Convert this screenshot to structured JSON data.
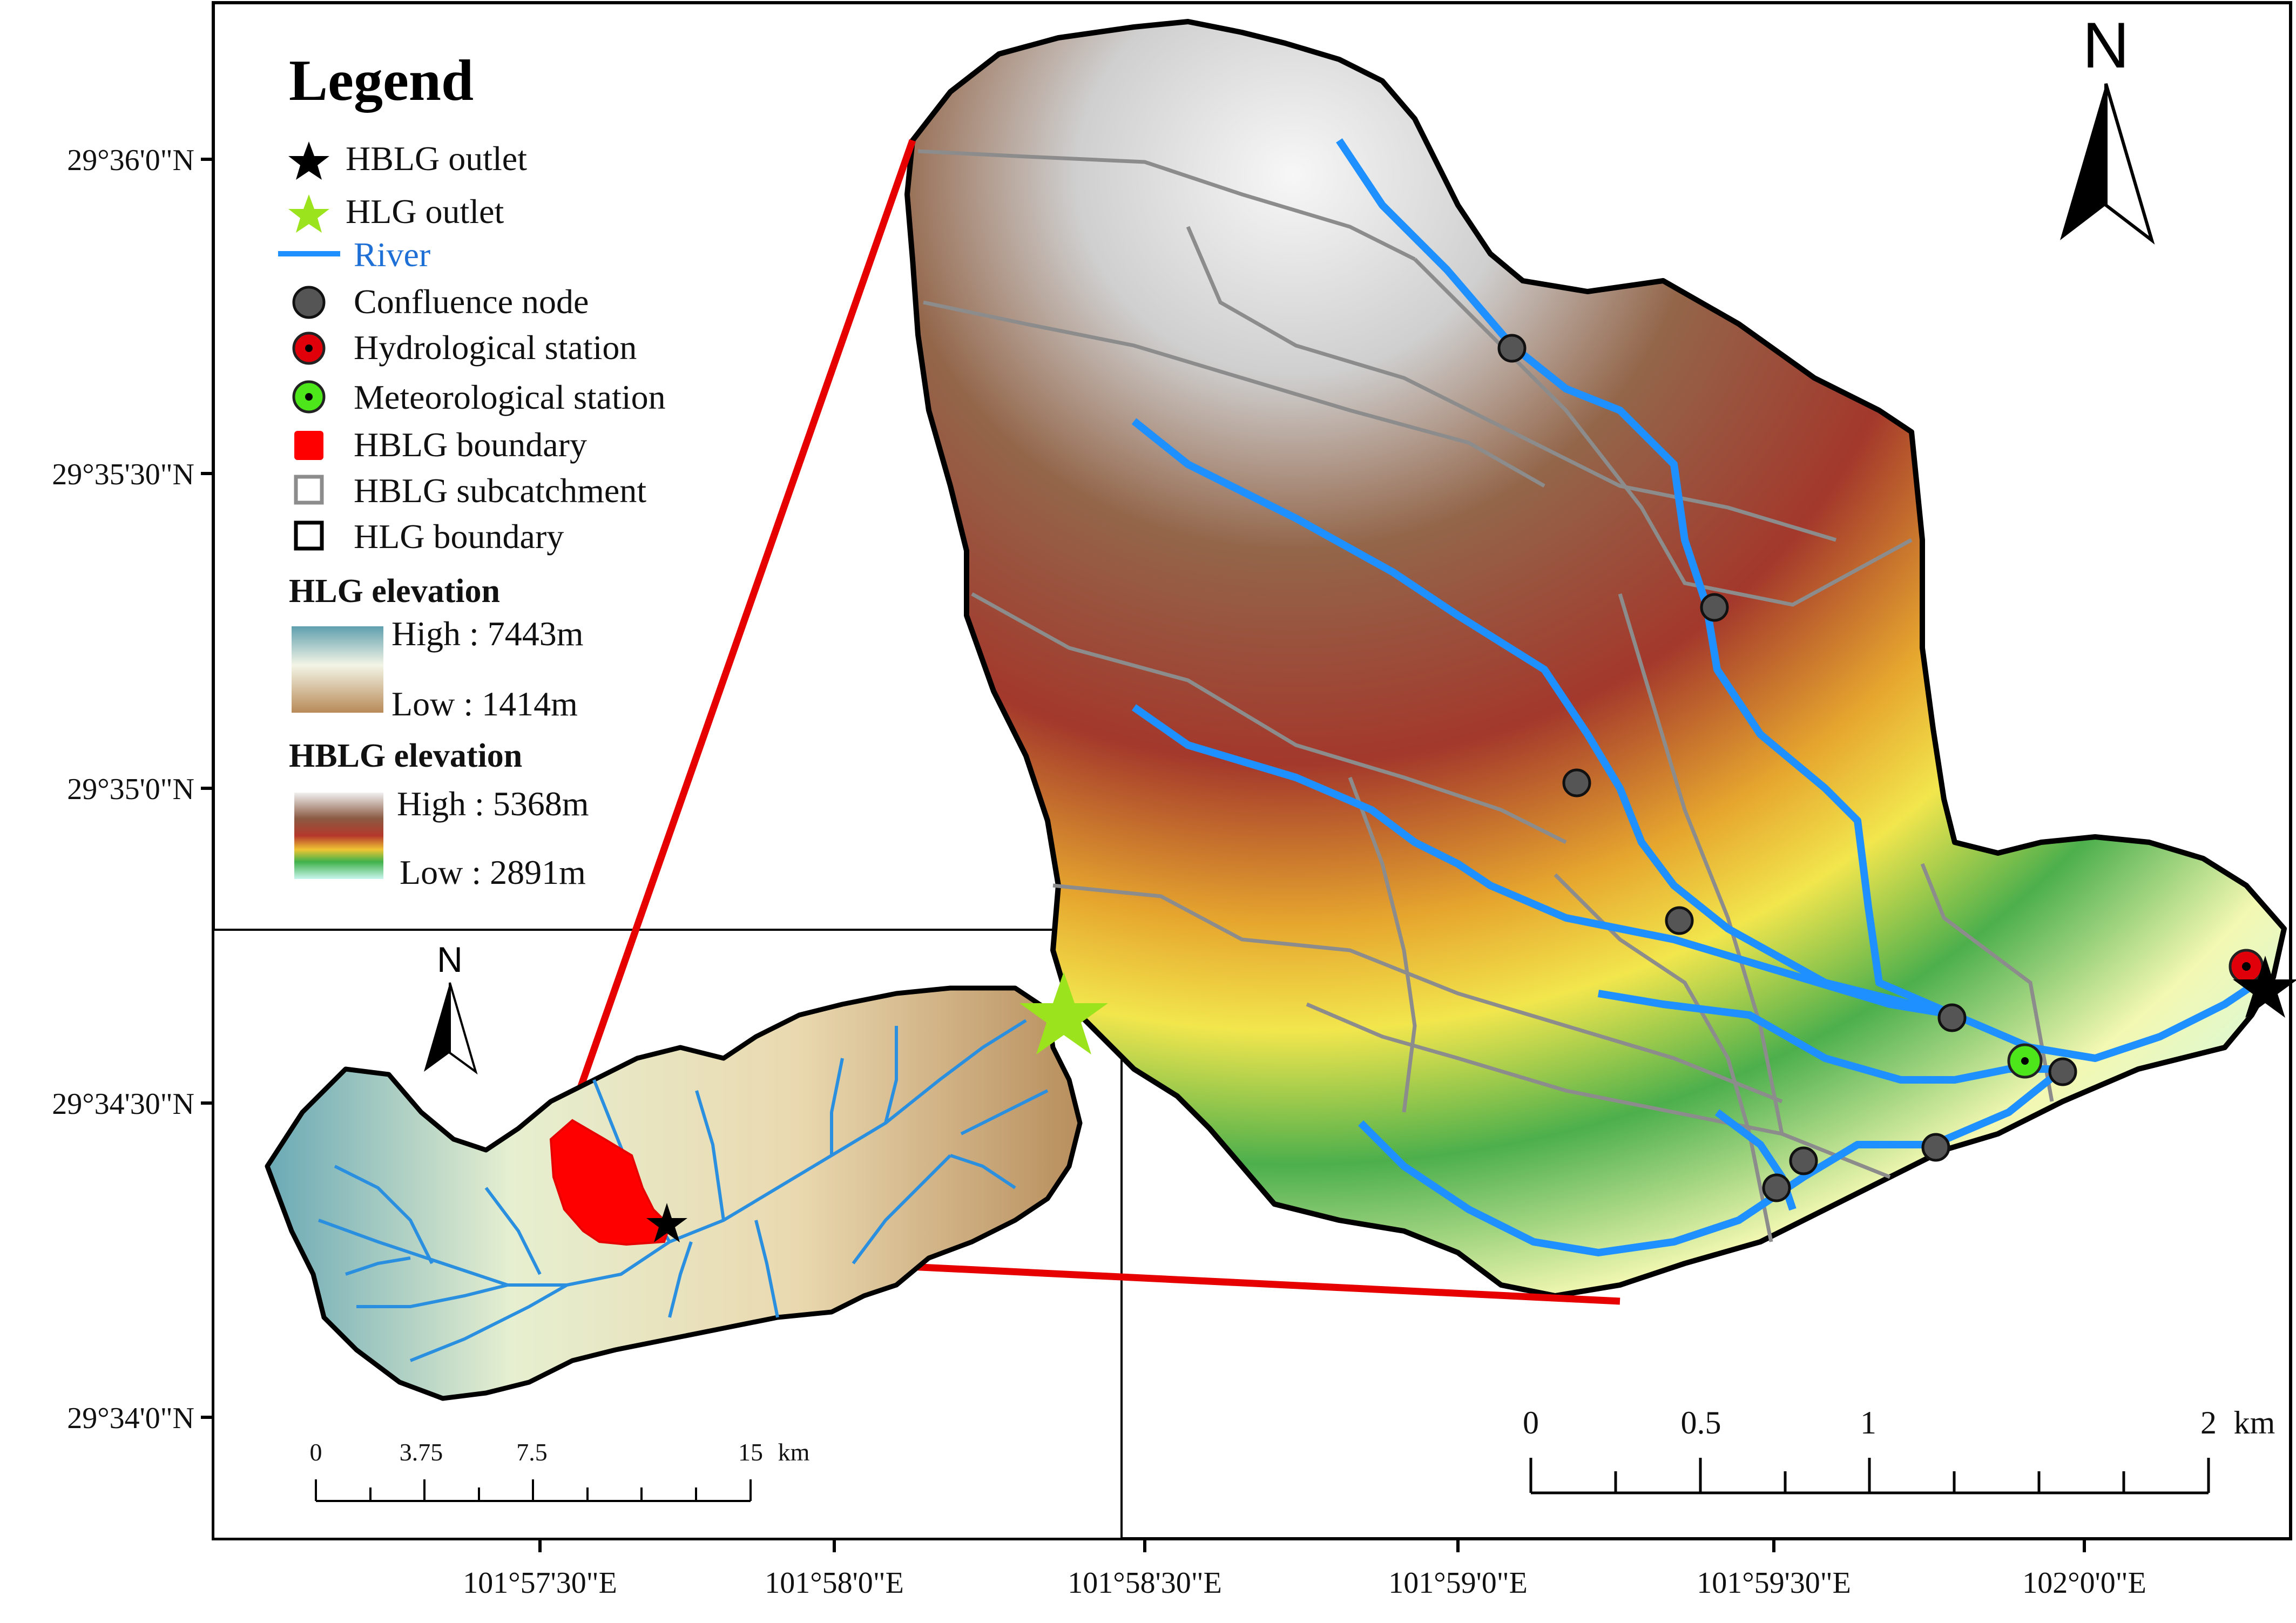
{
  "legend": {
    "title": "Legend",
    "items": [
      {
        "label": "HBLG outlet",
        "icon": "black-star-icon",
        "color": "#000000"
      },
      {
        "label": "HLG outlet",
        "icon": "green-star-icon",
        "color": "#9be31c"
      },
      {
        "label": "River",
        "icon": "river-line-icon",
        "color": "#1e90ff"
      },
      {
        "label": "Confluence node",
        "icon": "gray-circle-icon",
        "color": "#555555"
      },
      {
        "label": "Hydrological station",
        "icon": "red-dot-circle-icon",
        "color": "#e0000a"
      },
      {
        "label": "Meteorological station",
        "icon": "green-dot-circle-icon",
        "color": "#4de61a"
      },
      {
        "label": "HBLG boundary",
        "icon": "red-square-icon",
        "color": "#ff0000"
      },
      {
        "label": "HBLG subcatchment",
        "icon": "gray-square-outline-icon",
        "color": "#8c8c8c"
      },
      {
        "label": "HLG boundary",
        "icon": "black-square-outline-icon",
        "color": "#000000"
      }
    ],
    "hlg_elevation": {
      "title": "HLG elevation",
      "high": "High : 7443m",
      "low": "Low : 1414m"
    },
    "hblg_elevation": {
      "title": "HBLG elevation",
      "high": "High : 5368m",
      "low": "Low : 2891m"
    }
  },
  "axes": {
    "latitudes": [
      "29°36'0\"N",
      "29°35'30\"N",
      "29°35'0\"N",
      "29°34'30\"N",
      "29°34'0\"N"
    ],
    "longitudes": [
      "101°57'30\"E",
      "101°58'0\"E",
      "101°58'30\"E",
      "101°59'0\"E",
      "101°59'30\"E",
      "102°0'0\"E"
    ]
  },
  "north_arrow_label": "N",
  "inset_north_label": "N",
  "main_scale": {
    "labels": [
      "0",
      "0.5",
      "1",
      "2"
    ],
    "unit": "km"
  },
  "inset_scale": {
    "labels": [
      "0",
      "3.75",
      "7.5",
      "15"
    ],
    "unit": "km"
  },
  "colors": {
    "river": "#1e90ff",
    "subcatchment": "#8c8c8c",
    "connector": "#e60000",
    "boundary": "#000000"
  }
}
